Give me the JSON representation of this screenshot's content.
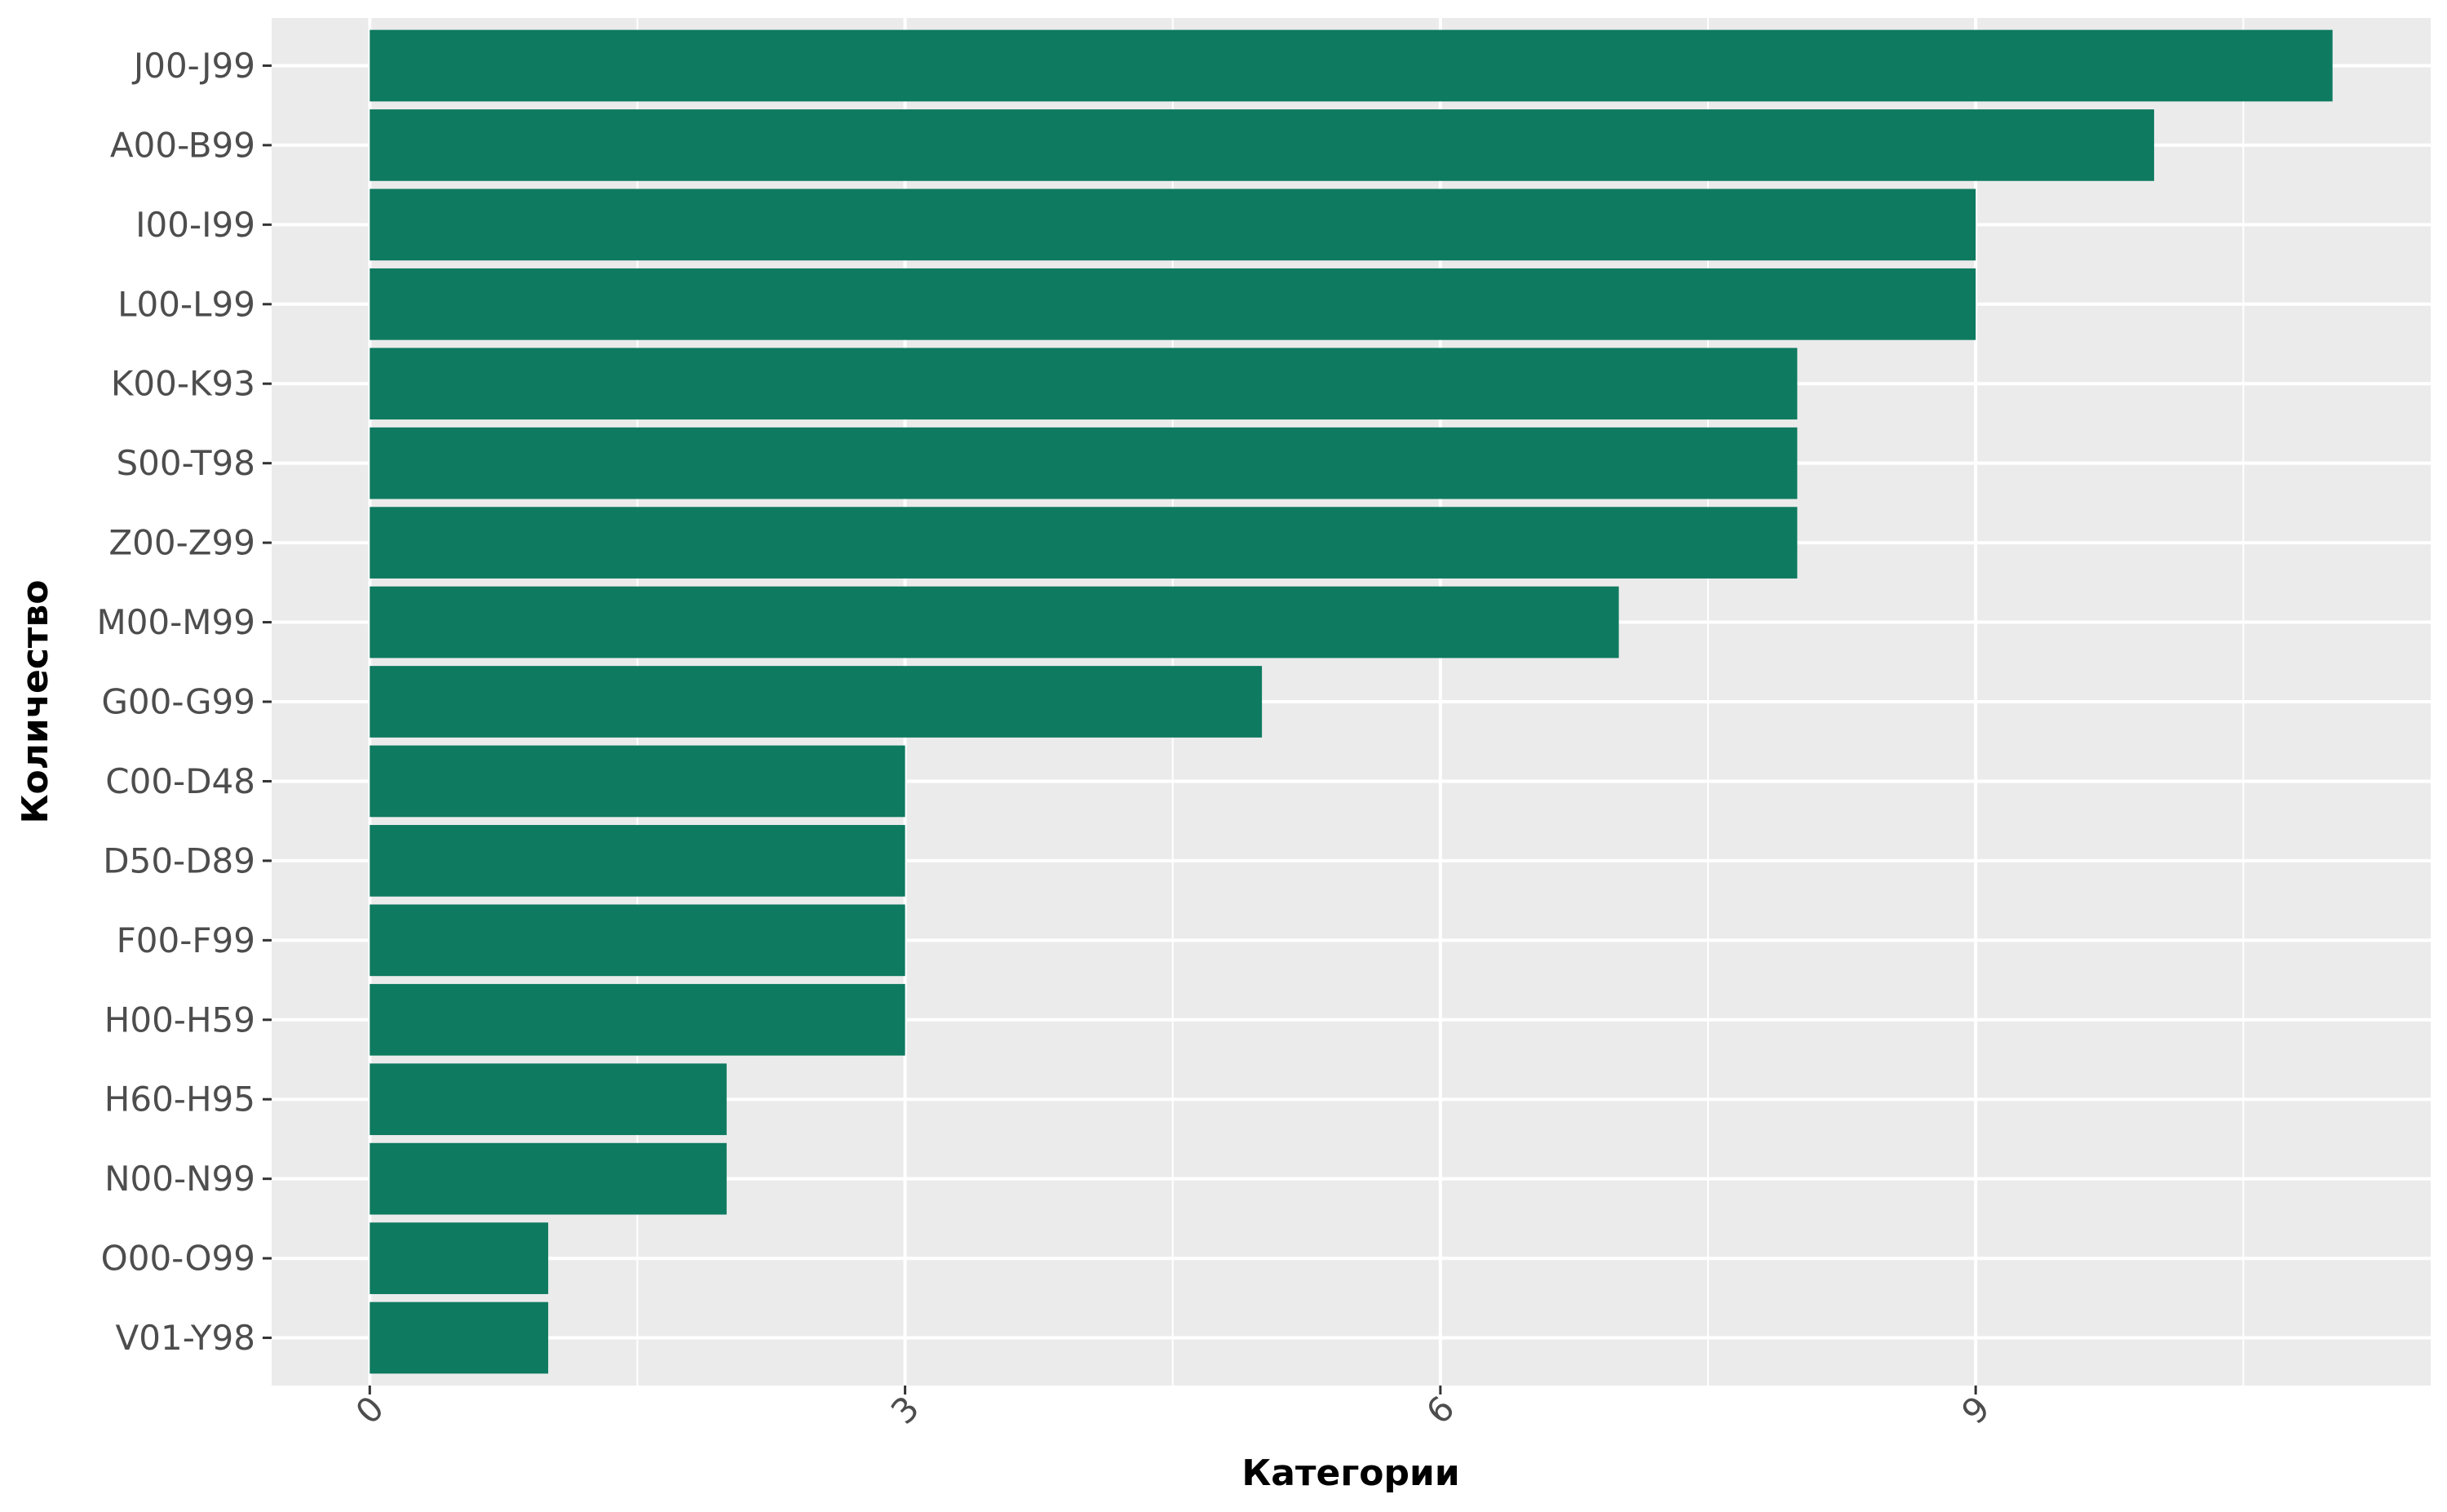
{
  "chart_data": {
    "type": "bar",
    "orientation": "horizontal",
    "categories": [
      "J00-J99",
      "A00-B99",
      "I00-I99",
      "L00-L99",
      "K00-K93",
      "S00-T98",
      "Z00-Z99",
      "M00-M99",
      "G00-G99",
      "C00-D48",
      "D50-D89",
      "F00-F99",
      "H00-H59",
      "H60-H95",
      "N00-N99",
      "O00-O99",
      "V01-Y98"
    ],
    "values": [
      11,
      10,
      9,
      9,
      8,
      8,
      8,
      7,
      5,
      3,
      3,
      3,
      3,
      2,
      2,
      1,
      1
    ],
    "xlabel": "Категории",
    "ylabel": "Количество",
    "xlim": [
      -0.55,
      11.55
    ],
    "xticks": [
      0,
      3,
      6,
      9
    ],
    "xtick_labels": [
      "0",
      "3",
      "6",
      "9"
    ],
    "grid": true,
    "legend": "none",
    "colors": {
      "bar": "#0e7a60",
      "panel": "#ebebeb",
      "grid": "#ffffff",
      "text": "#4d4d4d"
    }
  }
}
